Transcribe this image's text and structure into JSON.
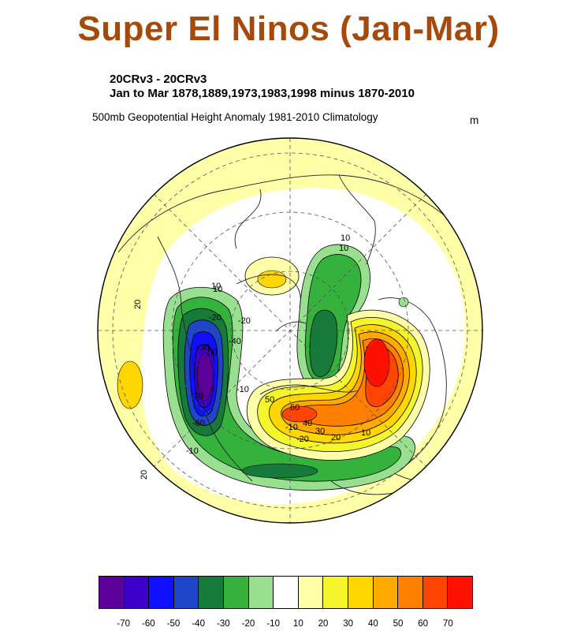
{
  "title": "Super El Ninos (Jan-Mar)",
  "subtitle_line1": "20CRv3 - 20CRv3",
  "subtitle_line2": "Jan to Mar 1878,1889,1973,1983,1998 minus 1870-2010",
  "variable": "500mb Geopotential Height Anomaly  1981-2010 Climatology",
  "units": "m",
  "colorbar": {
    "colors": [
      "#5b0099",
      "#3d00cc",
      "#1010ff",
      "#1f45c9",
      "#157a3a",
      "#35b23c",
      "#98e090",
      "#ffffff",
      "#ffffa8",
      "#f5f52c",
      "#ffd700",
      "#ffaa00",
      "#ff8000",
      "#ff4500",
      "#ff1100"
    ],
    "labels": [
      "-70",
      "-60",
      "-50",
      "-40",
      "-30",
      "-20",
      "-10",
      "10",
      "20",
      "30",
      "40",
      "50",
      "60",
      "70"
    ]
  },
  "contour_labels": [
    "20",
    "20",
    "10",
    "10",
    "10",
    "-10",
    "-20",
    "-30",
    "-40",
    "-50",
    "-60",
    "-70",
    "-20",
    "-10",
    "10",
    "20",
    "30",
    "40",
    "50",
    "60",
    "-10",
    "-20",
    "10"
  ],
  "colors": {
    "background": "#ffffa8",
    "neutral": "#ffffff",
    "ring_outline": "#000000",
    "coast": "#222222",
    "grid": "#555555",
    "title": "#a64a0c"
  }
}
